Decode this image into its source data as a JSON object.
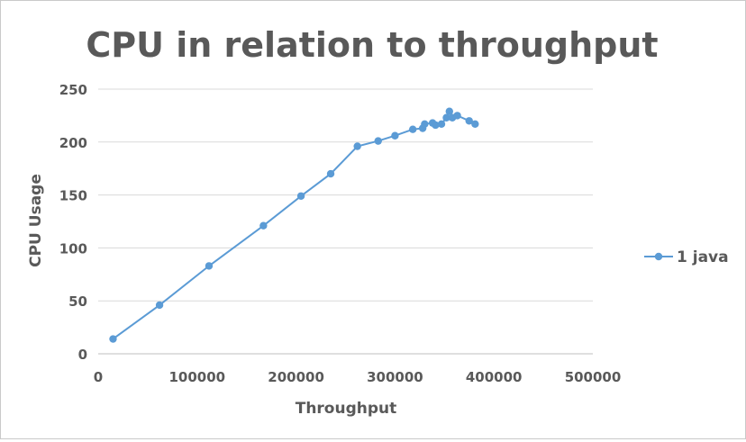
{
  "chart_data": {
    "type": "scatter",
    "title": "CPU in relation to throughput",
    "xlabel": "Throughput",
    "ylabel": "CPU Usage",
    "xlim": [
      0,
      500000
    ],
    "ylim": [
      0,
      250
    ],
    "xticks": [
      0,
      100000,
      200000,
      300000,
      400000,
      500000
    ],
    "yticks": [
      0,
      50,
      100,
      150,
      200,
      250
    ],
    "grid": "horizontal",
    "legend_position": "right",
    "series": [
      {
        "name": "1 java",
        "color": "#5B9BD5",
        "marker": "circle",
        "lines": true,
        "points": [
          [
            15000,
            14
          ],
          [
            62000,
            46
          ],
          [
            112000,
            83
          ],
          [
            167000,
            121
          ],
          [
            205000,
            149
          ],
          [
            235000,
            170
          ],
          [
            262000,
            196
          ],
          [
            283000,
            201
          ],
          [
            300000,
            206
          ],
          [
            318000,
            212
          ],
          [
            328000,
            213
          ],
          [
            330000,
            217
          ],
          [
            338000,
            218
          ],
          [
            341000,
            216
          ],
          [
            347000,
            217
          ],
          [
            352000,
            223
          ],
          [
            355000,
            229
          ],
          [
            358000,
            223
          ],
          [
            363000,
            225
          ],
          [
            375000,
            220
          ],
          [
            381000,
            217
          ]
        ]
      }
    ]
  }
}
